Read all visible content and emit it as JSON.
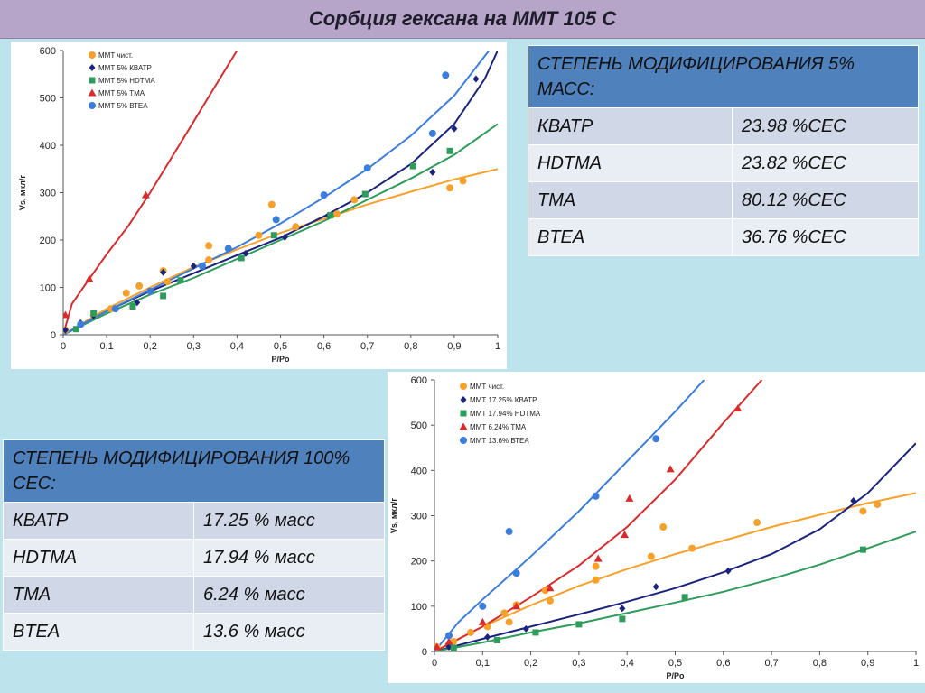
{
  "page_title": "Сорбция гексана на ММТ 105 С",
  "table_5pct": {
    "header": "СТЕПЕНЬ МОДИФИЦИРОВАНИЯ 5% МАСС:",
    "rows": [
      {
        "name": "КВАТР",
        "value": "23.98 %CEC"
      },
      {
        "name": "HDTMA",
        "value": "23.82 %CEC"
      },
      {
        "name": "TMA",
        "value": "80.12 %CEC"
      },
      {
        "name": "BTEA",
        "value": "36.76 %CEC"
      }
    ]
  },
  "table_100cec": {
    "header": "СТЕПЕНЬ МОДИФИЦИРОВАНИЯ 100% CEC:",
    "rows": [
      {
        "name": "КВАТР",
        "value": "17.25 % масс"
      },
      {
        "name": "HDTMA",
        "value": "17.94 % масс"
      },
      {
        "name": "TMA",
        "value": "6.24 % масс"
      },
      {
        "name": "BTEA",
        "value": "13.6 % масс"
      }
    ]
  },
  "chart_data": [
    {
      "type": "scatter",
      "xlabel": "P/Po",
      "ylabel": "Vs, мкл/г",
      "xlim": [
        0,
        1.0
      ],
      "ylim": [
        0,
        600
      ],
      "xticks": [
        "0",
        "0,1",
        "0,2",
        "0,3",
        "0,4",
        "0,5",
        "0,6",
        "0,7",
        "0,8",
        "0,9",
        "1"
      ],
      "yticks": [
        "0",
        "100",
        "200",
        "300",
        "400",
        "500",
        "600"
      ],
      "legend_position": "top-left",
      "series": [
        {
          "name": "ММТ чист.",
          "color": "#f7a02a",
          "marker": "circle",
          "points": [
            [
              0.005,
              10
            ],
            [
              0.04,
              22
            ],
            [
              0.07,
              42
            ],
            [
              0.11,
              55
            ],
            [
              0.145,
              88
            ],
            [
              0.175,
              103
            ],
            [
              0.23,
              135
            ],
            [
              0.24,
              112
            ],
            [
              0.335,
              158
            ],
            [
              0.335,
              188
            ],
            [
              0.45,
              210
            ],
            [
              0.48,
              275
            ],
            [
              0.535,
              228
            ],
            [
              0.63,
              255
            ],
            [
              0.67,
              285
            ],
            [
              0.89,
              310
            ],
            [
              0.92,
              325
            ]
          ],
          "curve": [
            [
              0,
              0
            ],
            [
              0.1,
              55
            ],
            [
              0.2,
              100
            ],
            [
              0.3,
              143
            ],
            [
              0.4,
              180
            ],
            [
              0.5,
              215
            ],
            [
              0.6,
              245
            ],
            [
              0.7,
              275
            ],
            [
              0.8,
              302
            ],
            [
              0.9,
              328
            ],
            [
              1.0,
              350
            ]
          ]
        },
        {
          "name": "ММТ 5% КВАТР",
          "color": "#1a237e",
          "marker": "diamond",
          "points": [
            [
              0.005,
              10
            ],
            [
              0.04,
              25
            ],
            [
              0.07,
              40
            ],
            [
              0.17,
              68
            ],
            [
              0.23,
              132
            ],
            [
              0.3,
              145
            ],
            [
              0.42,
              172
            ],
            [
              0.51,
              206
            ],
            [
              0.61,
              252
            ],
            [
              0.85,
              343
            ],
            [
              0.9,
              435
            ],
            [
              0.95,
              540
            ]
          ],
          "curve": [
            [
              0,
              0
            ],
            [
              0.1,
              50
            ],
            [
              0.2,
              92
            ],
            [
              0.3,
              130
            ],
            [
              0.4,
              168
            ],
            [
              0.5,
              205
            ],
            [
              0.6,
              250
            ],
            [
              0.7,
              300
            ],
            [
              0.8,
              360
            ],
            [
              0.9,
              445
            ],
            [
              0.97,
              540
            ],
            [
              1.0,
              600
            ]
          ]
        },
        {
          "name": "ММТ 5% HDTMA",
          "color": "#2e9c5b",
          "marker": "square",
          "points": [
            [
              0.03,
              12
            ],
            [
              0.07,
              45
            ],
            [
              0.16,
              60
            ],
            [
              0.23,
              82
            ],
            [
              0.27,
              115
            ],
            [
              0.41,
              162
            ],
            [
              0.485,
              210
            ],
            [
              0.615,
              252
            ],
            [
              0.695,
              297
            ],
            [
              0.805,
              356
            ],
            [
              0.89,
              388
            ]
          ],
          "curve": [
            [
              0,
              0
            ],
            [
              0.1,
              45
            ],
            [
              0.2,
              85
            ],
            [
              0.3,
              120
            ],
            [
              0.4,
              160
            ],
            [
              0.5,
              200
            ],
            [
              0.6,
              240
            ],
            [
              0.7,
              285
            ],
            [
              0.8,
              330
            ],
            [
              0.9,
              380
            ],
            [
              1.0,
              445
            ]
          ]
        },
        {
          "name": "ММТ 5% ТМА",
          "color": "#d92b2b",
          "marker": "triangle",
          "points": [
            [
              0.005,
              42
            ],
            [
              0.06,
              118
            ],
            [
              0.19,
              295
            ]
          ],
          "curve": [
            [
              0,
              0
            ],
            [
              0.02,
              65
            ],
            [
              0.05,
              105
            ],
            [
              0.1,
              170
            ],
            [
              0.15,
              230
            ],
            [
              0.2,
              300
            ],
            [
              0.25,
              375
            ],
            [
              0.3,
              450
            ],
            [
              0.35,
              525
            ],
            [
              0.4,
              600
            ]
          ]
        },
        {
          "name": "ММТ 5% ВТЕА",
          "color": "#3b7ddd",
          "marker": "circle",
          "points": [
            [
              0.04,
              22
            ],
            [
              0.12,
              55
            ],
            [
              0.2,
              92
            ],
            [
              0.32,
              145
            ],
            [
              0.38,
              182
            ],
            [
              0.49,
              243
            ],
            [
              0.6,
              295
            ],
            [
              0.7,
              352
            ],
            [
              0.85,
              425
            ],
            [
              0.88,
              548
            ]
          ],
          "curve": [
            [
              0,
              0
            ],
            [
              0.1,
              50
            ],
            [
              0.2,
              95
            ],
            [
              0.3,
              140
            ],
            [
              0.4,
              185
            ],
            [
              0.5,
              235
            ],
            [
              0.6,
              290
            ],
            [
              0.7,
              350
            ],
            [
              0.8,
              420
            ],
            [
              0.9,
              505
            ],
            [
              0.98,
              600
            ]
          ]
        }
      ]
    },
    {
      "type": "scatter",
      "xlabel": "P/Po",
      "ylabel": "Vs, мкл/г",
      "xlim": [
        0,
        1.0
      ],
      "ylim": [
        0,
        600
      ],
      "xticks": [
        "0",
        "0,1",
        "0,2",
        "0,3",
        "0,4",
        "0,5",
        "0,6",
        "0,7",
        "0,8",
        "0,9",
        "1"
      ],
      "yticks": [
        "0",
        "100",
        "200",
        "300",
        "400",
        "500",
        "600"
      ],
      "legend_position": "top-left",
      "series": [
        {
          "name": "ММТ чист.",
          "color": "#f7a02a",
          "marker": "circle",
          "points": [
            [
              0.005,
              10
            ],
            [
              0.04,
              22
            ],
            [
              0.075,
              42
            ],
            [
              0.11,
              55
            ],
            [
              0.145,
              85
            ],
            [
              0.155,
              65
            ],
            [
              0.17,
              103
            ],
            [
              0.23,
              135
            ],
            [
              0.24,
              112
            ],
            [
              0.335,
              158
            ],
            [
              0.335,
              188
            ],
            [
              0.45,
              210
            ],
            [
              0.475,
              275
            ],
            [
              0.535,
              228
            ],
            [
              0.67,
              285
            ],
            [
              0.89,
              310
            ],
            [
              0.92,
              325
            ]
          ],
          "curve": [
            [
              0,
              0
            ],
            [
              0.1,
              55
            ],
            [
              0.2,
              102
            ],
            [
              0.3,
              145
            ],
            [
              0.4,
              182
            ],
            [
              0.5,
              215
            ],
            [
              0.6,
              245
            ],
            [
              0.7,
              275
            ],
            [
              0.8,
              302
            ],
            [
              0.9,
              328
            ],
            [
              1.0,
              350
            ]
          ]
        },
        {
          "name": "ММТ 17.25% КВАТР",
          "color": "#1a237e",
          "marker": "diamond",
          "points": [
            [
              0.03,
              10
            ],
            [
              0.11,
              32
            ],
            [
              0.19,
              50
            ],
            [
              0.39,
              95
            ],
            [
              0.46,
              143
            ],
            [
              0.61,
              178
            ],
            [
              0.87,
              333
            ]
          ],
          "curve": [
            [
              0,
              0
            ],
            [
              0.1,
              28
            ],
            [
              0.2,
              55
            ],
            [
              0.3,
              82
            ],
            [
              0.4,
              110
            ],
            [
              0.5,
              140
            ],
            [
              0.6,
              175
            ],
            [
              0.7,
              215
            ],
            [
              0.8,
              270
            ],
            [
              0.9,
              350
            ],
            [
              1.0,
              460
            ]
          ]
        },
        {
          "name": "ММТ 17.94% HDTMA",
          "color": "#2e9c5b",
          "marker": "square",
          "points": [
            [
              0.04,
              8
            ],
            [
              0.13,
              25
            ],
            [
              0.21,
              42
            ],
            [
              0.3,
              60
            ],
            [
              0.39,
              72
            ],
            [
              0.52,
              120
            ],
            [
              0.89,
              225
            ]
          ],
          "curve": [
            [
              0,
              0
            ],
            [
              0.1,
              20
            ],
            [
              0.2,
              42
            ],
            [
              0.3,
              62
            ],
            [
              0.4,
              85
            ],
            [
              0.5,
              108
            ],
            [
              0.6,
              132
            ],
            [
              0.7,
              160
            ],
            [
              0.8,
              192
            ],
            [
              0.9,
              228
            ],
            [
              1.0,
              265
            ]
          ]
        },
        {
          "name": "ММТ 6.24% ТМА",
          "color": "#d92b2b",
          "marker": "triangle",
          "points": [
            [
              0.005,
              10
            ],
            [
              0.03,
              22
            ],
            [
              0.1,
              65
            ],
            [
              0.17,
              100
            ],
            [
              0.24,
              140
            ],
            [
              0.34,
              205
            ],
            [
              0.395,
              258
            ],
            [
              0.405,
              338
            ],
            [
              0.49,
              403
            ],
            [
              0.63,
              537
            ]
          ],
          "curve": [
            [
              0,
              0
            ],
            [
              0.1,
              55
            ],
            [
              0.2,
              120
            ],
            [
              0.3,
              190
            ],
            [
              0.4,
              275
            ],
            [
              0.5,
              380
            ],
            [
              0.6,
              505
            ],
            [
              0.68,
              600
            ]
          ]
        },
        {
          "name": "ММТ 13.6% ВТЕА",
          "color": "#3b7ddd",
          "marker": "circle",
          "points": [
            [
              0.03,
              35
            ],
            [
              0.1,
              100
            ],
            [
              0.155,
              265
            ],
            [
              0.17,
              173
            ],
            [
              0.335,
              343
            ],
            [
              0.46,
              470
            ]
          ],
          "curve": [
            [
              0,
              0
            ],
            [
              0.05,
              65
            ],
            [
              0.1,
              115
            ],
            [
              0.2,
              210
            ],
            [
              0.3,
              310
            ],
            [
              0.4,
              420
            ],
            [
              0.5,
              530
            ],
            [
              0.56,
              600
            ]
          ]
        }
      ]
    }
  ]
}
